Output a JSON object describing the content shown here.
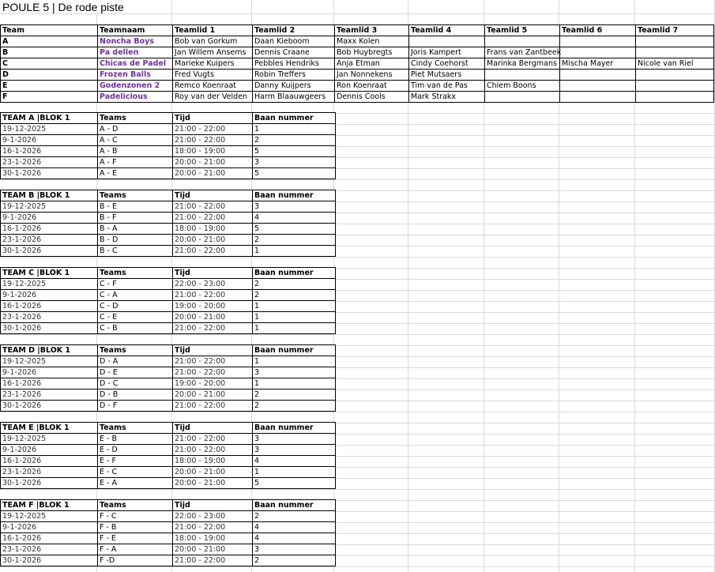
{
  "title": "POULE 5 | De rode piste",
  "colors": {
    "team_name": "#7030a0",
    "gridline": "#dadada",
    "border": "#000000"
  },
  "teams_table": {
    "headers": [
      "Team",
      "Teamnaam",
      "Teamlid 1",
      "Teamlid 2",
      "Teamlid 3",
      "Teamlid 4",
      "Teamlid 5",
      "Teamlid 6",
      "Teamlid 7"
    ],
    "rows": [
      [
        "A",
        "Noncha Boys",
        "Bob van Gorkum",
        "Daan Kieboom",
        "Maxx Kolen",
        "",
        "",
        "",
        ""
      ],
      [
        "B",
        "Pa dellen",
        "Jan Willem Ansems",
        "Dennis Craane",
        "Bob Huybregts",
        "Joris Kampert",
        "Frans van Zantbeek",
        "",
        ""
      ],
      [
        "C",
        "Chicas de Padel",
        "Marieke Kuipers",
        "Pebbles Hendriks",
        "Anja Etman",
        "Cindy Coehorst",
        "Marinka Bergmans",
        "Mischa Mayer",
        "Nicole van Riel"
      ],
      [
        "D",
        "Frozen Balls",
        "Fred Vugts",
        "Robin Treffers",
        "Jan Nonnekens",
        "Piet Mutsaers",
        "",
        "",
        ""
      ],
      [
        "E",
        "Godenzonen 2",
        "Remco Koenraat",
        "Danny Kuijpers",
        "Ron Koenraat",
        "Tim van de Pas",
        "Chiem Boons",
        "",
        ""
      ],
      [
        "F",
        "Padelicious",
        "Roy van der Velden",
        "Harm Blaauwgeers",
        "Dennis Cools",
        "Mark Strakx",
        "",
        "",
        ""
      ]
    ]
  },
  "schedules": [
    {
      "headers": [
        "TEAM A |BLOK 1",
        "Teams",
        "Tijd",
        "Baan nummer"
      ],
      "rows": [
        [
          "19-12-2025",
          "A - D",
          "21:00 - 22:00",
          "1"
        ],
        [
          "9-1-2026",
          "A - C",
          "21:00 - 22:00",
          "2"
        ],
        [
          "16-1-2026",
          "A - B",
          "18:00 - 19:00",
          "5"
        ],
        [
          "23-1-2026",
          "A - F",
          "20:00 - 21:00",
          "3"
        ],
        [
          "30-1-2026",
          "A - E",
          "20:00 - 21:00",
          "5"
        ]
      ]
    },
    {
      "headers": [
        "TEAM B |BLOK 1",
        "Teams",
        "Tijd",
        "Baan nummer"
      ],
      "rows": [
        [
          "19-12-2025",
          "B - E",
          "21:00 - 22:00",
          "3"
        ],
        [
          "9-1-2026",
          "B - F",
          "21:00 - 22:00",
          "4"
        ],
        [
          "16-1-2026",
          "B - A",
          "18:00 - 19:00",
          "5"
        ],
        [
          "23-1-2026",
          "B - D",
          "20:00 - 21:00",
          "2"
        ],
        [
          "30-1-2026",
          "B - C",
          "21:00 - 22:00",
          "1"
        ]
      ]
    },
    {
      "headers": [
        "TEAM C |BLOK 1",
        "Teams",
        "Tijd",
        "Baan nummer"
      ],
      "rows": [
        [
          "19-12-2025",
          "C - F",
          "22:00 - 23:00",
          "2"
        ],
        [
          "9-1-2026",
          "C - A",
          "21:00 - 22:00",
          "2"
        ],
        [
          "16-1-2026",
          "C - D",
          "19:00 - 20:00",
          "1"
        ],
        [
          "23-1-2026",
          "C - E",
          "20:00 - 21:00",
          "1"
        ],
        [
          "30-1-2026",
          "C - B",
          "21:00 - 22:00",
          "1"
        ]
      ]
    },
    {
      "headers": [
        "TEAM D |BLOK 1",
        "Teams",
        "Tijd",
        "Baan nummer"
      ],
      "rows": [
        [
          "19-12-2025",
          "D - A",
          "21:00 - 22:00",
          "1"
        ],
        [
          "9-1-2026",
          "D - E",
          "21:00 - 22:00",
          "3"
        ],
        [
          "16-1-2026",
          "D - C",
          "19:00 - 20:00",
          "1"
        ],
        [
          "23-1-2026",
          "D - B",
          "20:00 - 21:00",
          "2"
        ],
        [
          "30-1-2026",
          "D - F",
          "21:00 - 22:00",
          "2"
        ]
      ]
    },
    {
      "headers": [
        "TEAM E |BLOK 1",
        "Teams",
        "Tijd",
        "Baan nummer"
      ],
      "rows": [
        [
          "19-12-2025",
          "E - B",
          "21:00 - 22:00",
          "3"
        ],
        [
          "9-1-2026",
          "E - D",
          "21:00 - 22:00",
          "3"
        ],
        [
          "16-1-2026",
          "E - F",
          "18:00 - 19:00",
          "4"
        ],
        [
          "23-1-2026",
          "E - C",
          "20:00 - 21:00",
          "1"
        ],
        [
          "30-1-2026",
          "E - A",
          "20:00 - 21:00",
          "5"
        ]
      ]
    },
    {
      "headers": [
        "TEAM F |BLOK 1",
        "Teams",
        "Tijd",
        "Baan nummer"
      ],
      "rows": [
        [
          "19-12-2025",
          "F - C",
          "22:00 - 23:00",
          "2"
        ],
        [
          "9-1-2026",
          "F - B",
          "21:00 - 22:00",
          "4"
        ],
        [
          "16-1-2026",
          "F - E",
          "18:00 - 19:00",
          "4"
        ],
        [
          "23-1-2026",
          "F - A",
          "20:00 - 21:00",
          "3"
        ],
        [
          "30-1-2026",
          "F -D",
          "21:00 - 22:00",
          "2"
        ]
      ]
    }
  ]
}
